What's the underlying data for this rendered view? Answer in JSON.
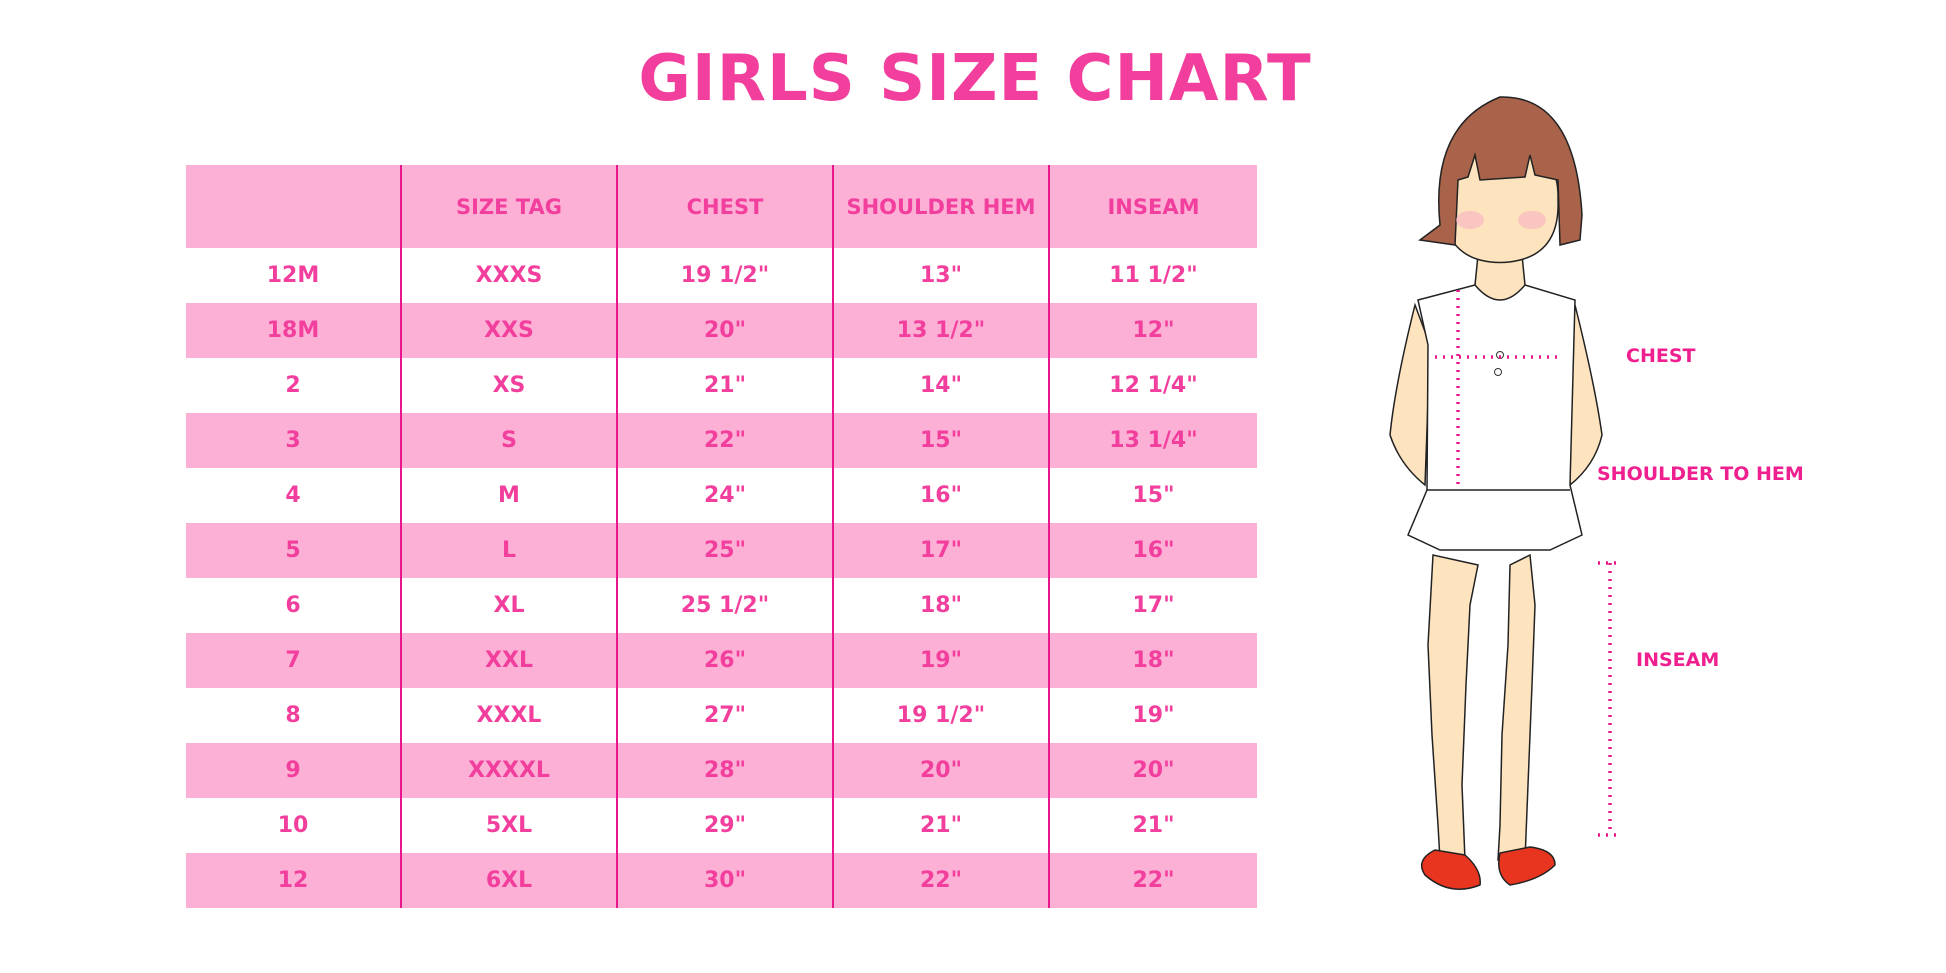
{
  "title": "GIRLS SIZE CHART",
  "table": {
    "headers": [
      "",
      "SIZE TAG",
      "CHEST",
      "SHOULDER HEM",
      "INSEAM"
    ],
    "rows": [
      [
        "12M",
        "XXXS",
        "19 1/2\"",
        "13\"",
        "11 1/2\""
      ],
      [
        "18M",
        "XXS",
        "20\"",
        "13 1/2\"",
        "12\""
      ],
      [
        "2",
        "XS",
        "21\"",
        "14\"",
        "12 1/4\""
      ],
      [
        "3",
        "S",
        "22\"",
        "15\"",
        "13 1/4\""
      ],
      [
        "4",
        "M",
        "24\"",
        "16\"",
        "15\""
      ],
      [
        "5",
        "L",
        "25\"",
        "17\"",
        "16\""
      ],
      [
        "6",
        "XL",
        "25 1/2\"",
        "18\"",
        "17\""
      ],
      [
        "7",
        "XXL",
        "26\"",
        "19\"",
        "18\""
      ],
      [
        "8",
        "XXXL",
        "27\"",
        "19 1/2\"",
        "19\""
      ],
      [
        "9",
        "XXXXL",
        "28\"",
        "20\"",
        "20\""
      ],
      [
        "10",
        "5XL",
        "29\"",
        "21\"",
        "21\""
      ],
      [
        "12",
        "6XL",
        "30\"",
        "22\"",
        "22\""
      ]
    ]
  },
  "figure": {
    "labels": {
      "chest": "CHEST",
      "shoulder_to_hem": "SHOULDER TO HEM",
      "inseam": "INSEAM"
    }
  },
  "colors": {
    "accent": "#f23f9d",
    "row_pink": "#fdb0d5",
    "divider": "#e8168c"
  }
}
